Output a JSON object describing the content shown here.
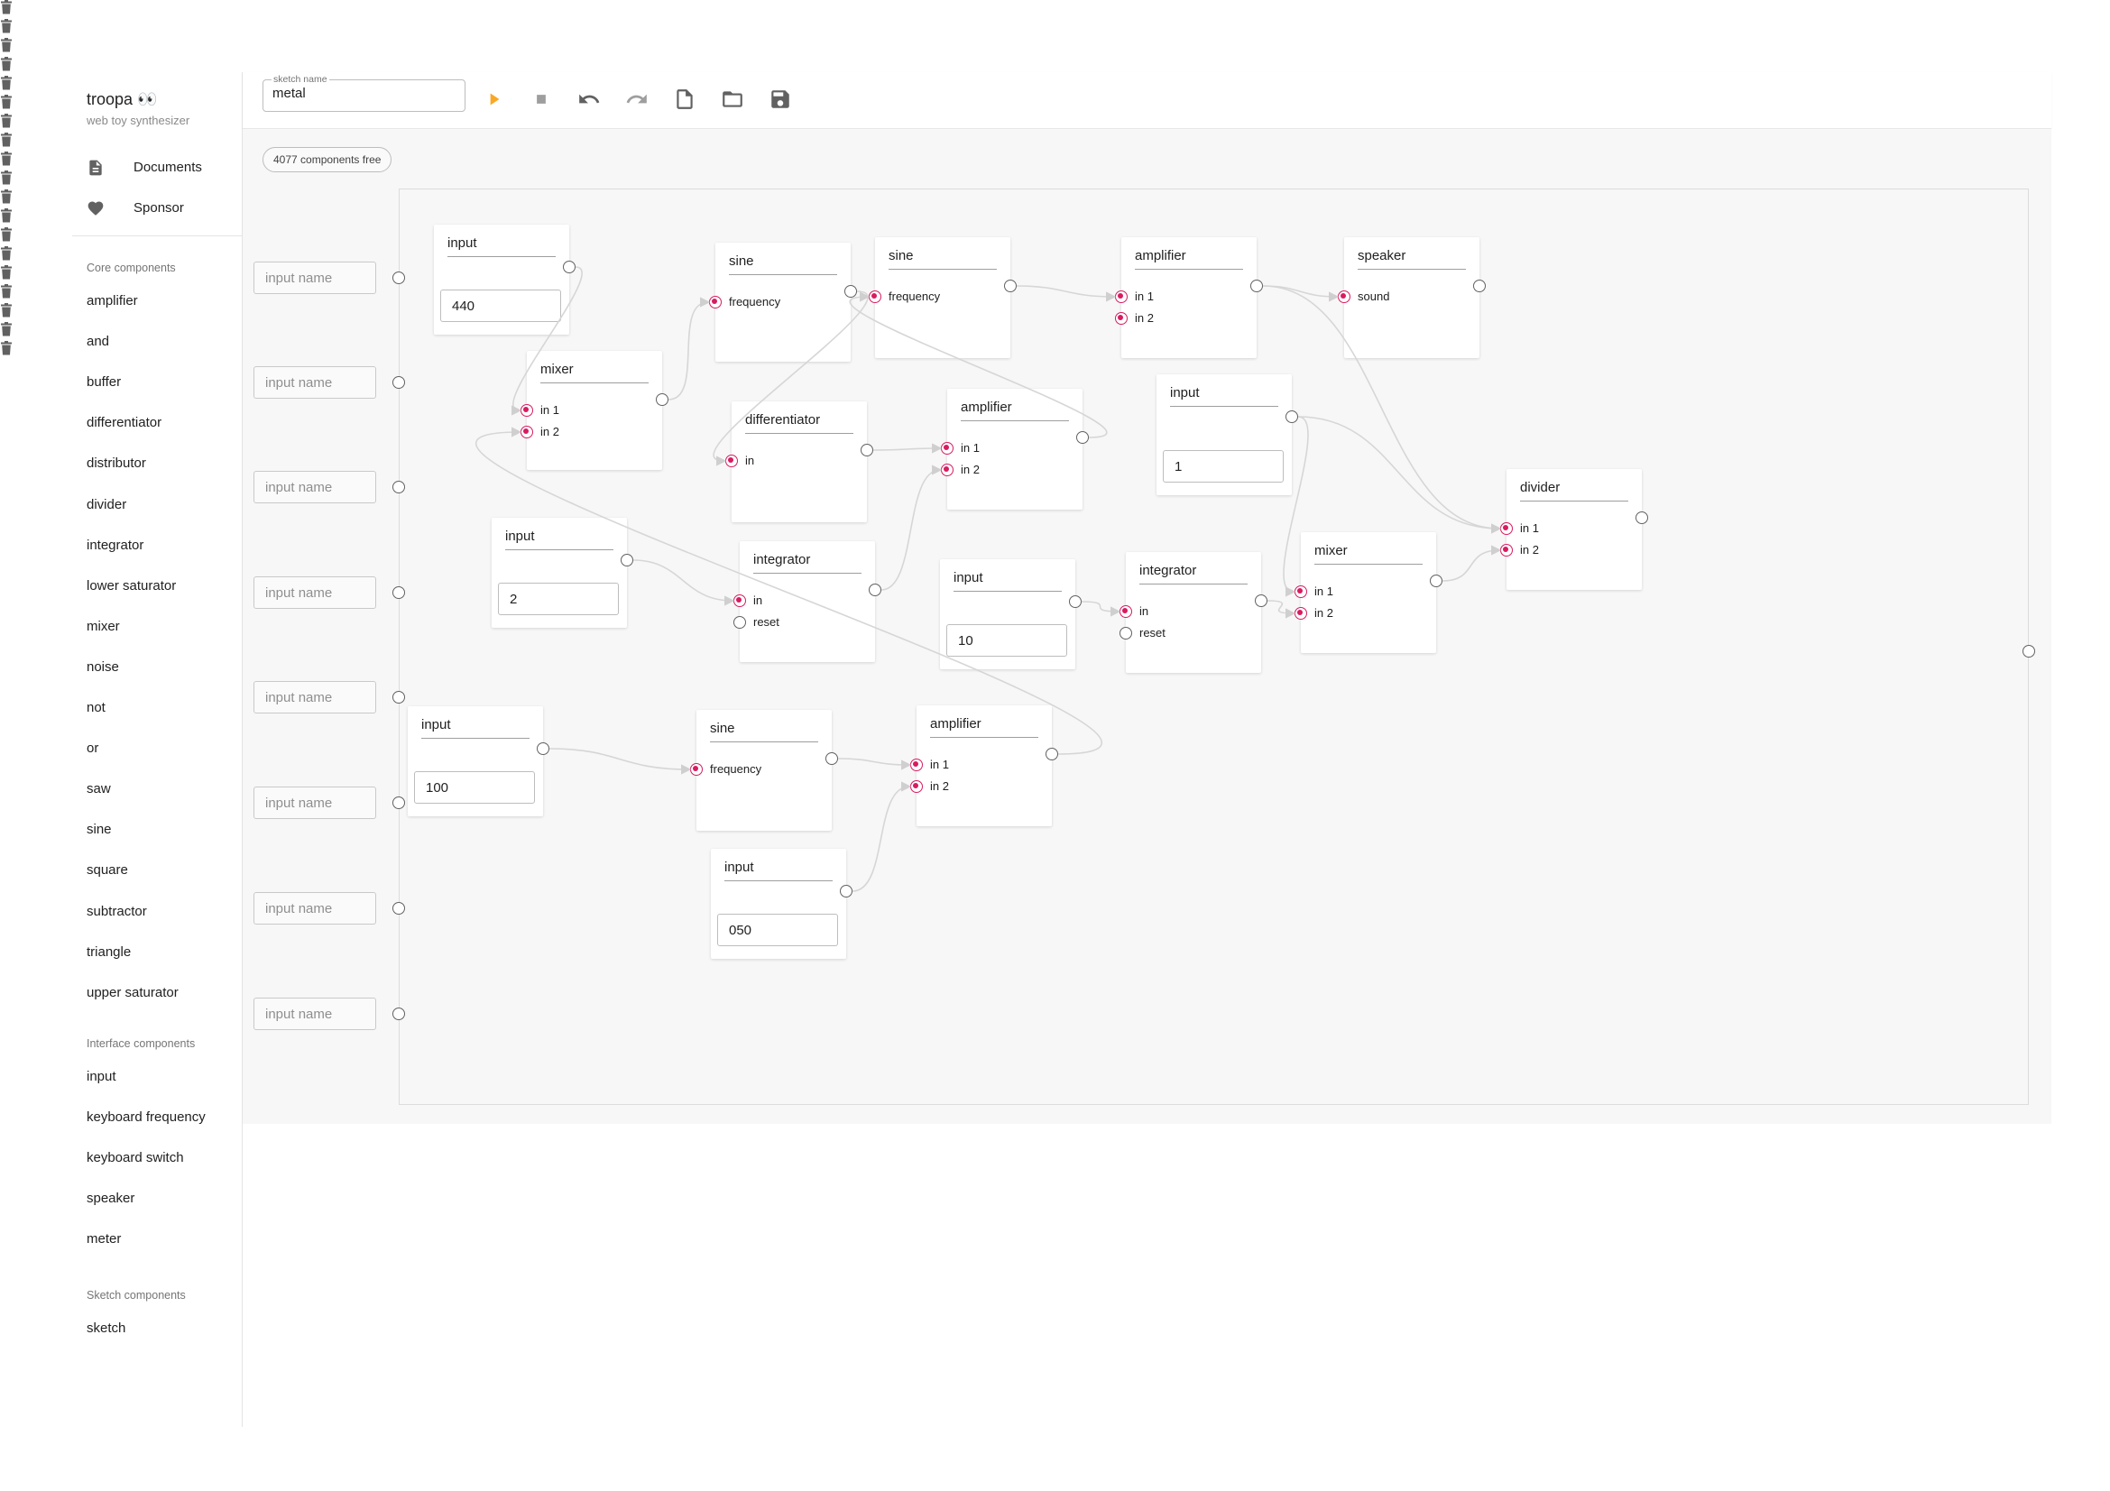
{
  "app": {
    "brand": "troopa 👀",
    "tagline": "web toy synthesizer"
  },
  "nav": [
    {
      "label": "Documents",
      "icon": "document-icon"
    },
    {
      "label": "Sponsor",
      "icon": "heart-icon"
    }
  ],
  "sections": [
    {
      "title": "Core components",
      "items": [
        "amplifier",
        "and",
        "buffer",
        "differentiator",
        "distributor",
        "divider",
        "integrator",
        "lower saturator",
        "mixer",
        "noise",
        "not",
        "or",
        "saw",
        "sine",
        "square",
        "subtractor",
        "triangle",
        "upper saturator"
      ]
    },
    {
      "title": "Interface components",
      "items": [
        "input",
        "keyboard frequency",
        "keyboard switch",
        "speaker",
        "meter"
      ]
    },
    {
      "title": "Sketch components",
      "items": [
        "sketch"
      ]
    }
  ],
  "toolbar": {
    "sketch_label": "sketch name",
    "sketch_value": "metal",
    "buttons": [
      "play-icon",
      "stop-icon",
      "undo-icon",
      "redo-icon",
      "new-file-icon",
      "open-folder-icon",
      "save-icon"
    ],
    "play_color": "#f9a825",
    "disabled_color": "#9e9e9e",
    "enabled_color": "#616161"
  },
  "workspace": {
    "free_label": "4077 components free",
    "ext_inputs_placeholder": "input name",
    "ext_inputs_count": 8
  },
  "colors": {
    "accent": "#d81b60",
    "wire": "#d6d6d6",
    "port_idle": "#616161"
  },
  "nodes": [
    {
      "id": "n1",
      "title": "input",
      "value": "440",
      "inputs": []
    },
    {
      "id": "n2",
      "title": "mixer",
      "inputs": [
        {
          "label": "in 1",
          "active": true
        },
        {
          "label": "in 2",
          "active": true
        }
      ]
    },
    {
      "id": "n3",
      "title": "sine",
      "inputs": [
        {
          "label": "frequency",
          "active": true
        }
      ]
    },
    {
      "id": "n4",
      "title": "sine",
      "inputs": [
        {
          "label": "frequency",
          "active": true
        }
      ]
    },
    {
      "id": "n5",
      "title": "amplifier",
      "inputs": [
        {
          "label": "in 1",
          "active": true
        },
        {
          "label": "in 2",
          "active": true
        }
      ]
    },
    {
      "id": "n6",
      "title": "speaker",
      "inputs": [
        {
          "label": "sound",
          "active": true
        }
      ],
      "no_output": true
    },
    {
      "id": "n7",
      "title": "differentiator",
      "inputs": [
        {
          "label": "in",
          "active": true
        }
      ]
    },
    {
      "id": "n8",
      "title": "amplifier",
      "inputs": [
        {
          "label": "in 1",
          "active": true
        },
        {
          "label": "in 2",
          "active": true
        }
      ]
    },
    {
      "id": "n9",
      "title": "input",
      "value": "1",
      "inputs": []
    },
    {
      "id": "n10",
      "title": "divider",
      "inputs": [
        {
          "label": "in 1",
          "active": true
        },
        {
          "label": "in 2",
          "active": true
        }
      ]
    },
    {
      "id": "n11",
      "title": "input",
      "value": "2",
      "inputs": []
    },
    {
      "id": "n12",
      "title": "integrator",
      "inputs": [
        {
          "label": "in",
          "active": true
        },
        {
          "label": "reset",
          "active": false
        }
      ]
    },
    {
      "id": "n13",
      "title": "input",
      "value": "10",
      "inputs": []
    },
    {
      "id": "n14",
      "title": "integrator",
      "inputs": [
        {
          "label": "in",
          "active": true
        },
        {
          "label": "reset",
          "active": false
        }
      ]
    },
    {
      "id": "n15",
      "title": "mixer",
      "inputs": [
        {
          "label": "in 1",
          "active": true
        },
        {
          "label": "in 2",
          "active": true
        }
      ]
    },
    {
      "id": "n16",
      "title": "input",
      "value": "100",
      "inputs": []
    },
    {
      "id": "n17",
      "title": "sine",
      "inputs": [
        {
          "label": "frequency",
          "active": true
        }
      ]
    },
    {
      "id": "n18",
      "title": "amplifier",
      "inputs": [
        {
          "label": "in 1",
          "active": true
        },
        {
          "label": "in 2",
          "active": true
        }
      ]
    },
    {
      "id": "n19",
      "title": "input",
      "value": "050",
      "inputs": []
    }
  ],
  "wires": [
    [
      "n1",
      "out",
      "n2",
      "0"
    ],
    [
      "n2",
      "out",
      "n3",
      "0"
    ],
    [
      "n3",
      "out",
      "n7",
      "0"
    ],
    [
      "n4",
      "out",
      "n5",
      "0"
    ],
    [
      "n5",
      "out",
      "n6",
      "0"
    ],
    [
      "n5",
      "out",
      "n10",
      "0"
    ],
    [
      "n7",
      "out",
      "n8",
      "0"
    ],
    [
      "n12",
      "out",
      "n8",
      "1"
    ],
    [
      "n8",
      "out",
      "n4",
      "0"
    ],
    [
      "n9",
      "out",
      "n10",
      "0"
    ],
    [
      "n9",
      "out",
      "n15",
      "0"
    ],
    [
      "n11",
      "out",
      "n12",
      "0"
    ],
    [
      "n13",
      "out",
      "n14",
      "0"
    ],
    [
      "n14",
      "out",
      "n15",
      "1"
    ],
    [
      "n15",
      "out",
      "n10",
      "1"
    ],
    [
      "n16",
      "out",
      "n17",
      "0"
    ],
    [
      "n17",
      "out",
      "n18",
      "0"
    ],
    [
      "n19",
      "out",
      "n18",
      "1"
    ],
    [
      "n18",
      "out",
      "n2",
      "1"
    ]
  ]
}
